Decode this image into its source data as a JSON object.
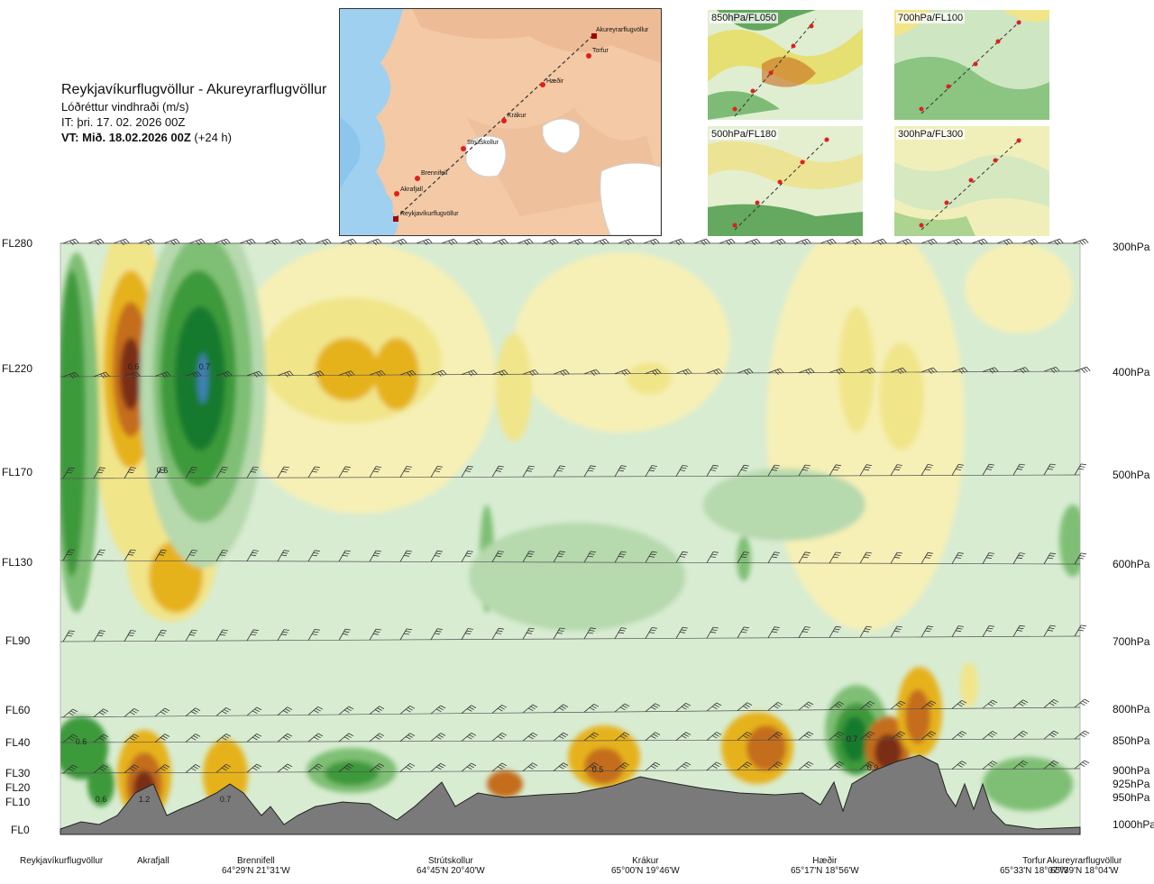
{
  "header": {
    "route": "Reykjavíkurflugvöllur - Akureyrarflugvöllur",
    "variable": "Lóðréttur vindhraði (m/s)",
    "it_label": "IT: þri. 17. 02. 2026 00Z",
    "vt_label": "VT: Mið. 18.02.2026 00Z",
    "vt_offset": "(+24 h)"
  },
  "map": {
    "waypoints": [
      "Akureyrarflugvöllur",
      "Torfur",
      "Hæðir",
      "Krákur",
      "Strútskollur",
      "Brennifell",
      "Akrafjall",
      "Reykjavíkurflugvöllur"
    ],
    "colors": {
      "land": "#f3c9a6",
      "sea": "#9fd0f0",
      "ice": "#ffffff",
      "route": "#333333",
      "point": "#e0201b"
    }
  },
  "thumbnails": [
    {
      "label": "850hPa/FL050"
    },
    {
      "label": "700hPa/FL100"
    },
    {
      "label": "500hPa/FL180"
    },
    {
      "label": "300hPa/FL300"
    }
  ],
  "chart_data": {
    "type": "heatmap",
    "title": "Reykjavíkurflugvöllur - Akureyrarflugvöllur",
    "variable": "Lóðréttur vindhraði (m/s)",
    "levels": [
      {
        "fl": "FL280",
        "hpa": "300hPa"
      },
      {
        "fl": "FL220",
        "hpa": "400hPa"
      },
      {
        "fl": "FL170",
        "hpa": "500hPa"
      },
      {
        "fl": "FL130",
        "hpa": "600hPa"
      },
      {
        "fl": "FL90",
        "hpa": "700hPa"
      },
      {
        "fl": "FL60",
        "hpa": "800hPa"
      },
      {
        "fl": "FL40",
        "hpa": "850hPa"
      },
      {
        "fl": "FL30",
        "hpa": "900hPa"
      },
      {
        "fl": "FL20",
        "hpa": "925hPa"
      },
      {
        "fl": "FL10",
        "hpa": "950hPa"
      },
      {
        "fl": "FL0",
        "hpa": "1000hPa"
      }
    ],
    "locations": [
      {
        "name": "Reykjavíkurflugvöllur",
        "coord": ""
      },
      {
        "name": "Akrafjall",
        "coord": ""
      },
      {
        "name": "Brennifell",
        "coord": "64°29'N 21°31'W"
      },
      {
        "name": "Strútskollur",
        "coord": "64°45'N 20°40'W"
      },
      {
        "name": "Krákur",
        "coord": "65°00'N 19°46'W"
      },
      {
        "name": "Hæðir",
        "coord": "65°17'N 18°56'W"
      },
      {
        "name": "Torfur",
        "coord": "65°33'N 18°07'W"
      },
      {
        "name": "Akureyrarflugvöllur",
        "coord": "65°39'N 18°04'W"
      }
    ],
    "annotations": [
      "0.6",
      "0.7",
      "0.6",
      "0.6",
      "0.6",
      "1.2",
      "0.7",
      "0.5",
      "0.7",
      "0.9"
    ],
    "colors": {
      "strong_down": "#7a2d12",
      "down2": "#c46d1a",
      "down1": "#e6b21c",
      "down0": "#f1e58a",
      "weak_down": "#f6f0b6",
      "weak_up": "#d8ecd2",
      "up0": "#b6d9ae",
      "up1": "#7fbf75",
      "up2": "#3d9a3a",
      "strong_up": "#157a2e",
      "peak_up": "#3f7fb4",
      "terrain": "#7a7a7a"
    }
  }
}
